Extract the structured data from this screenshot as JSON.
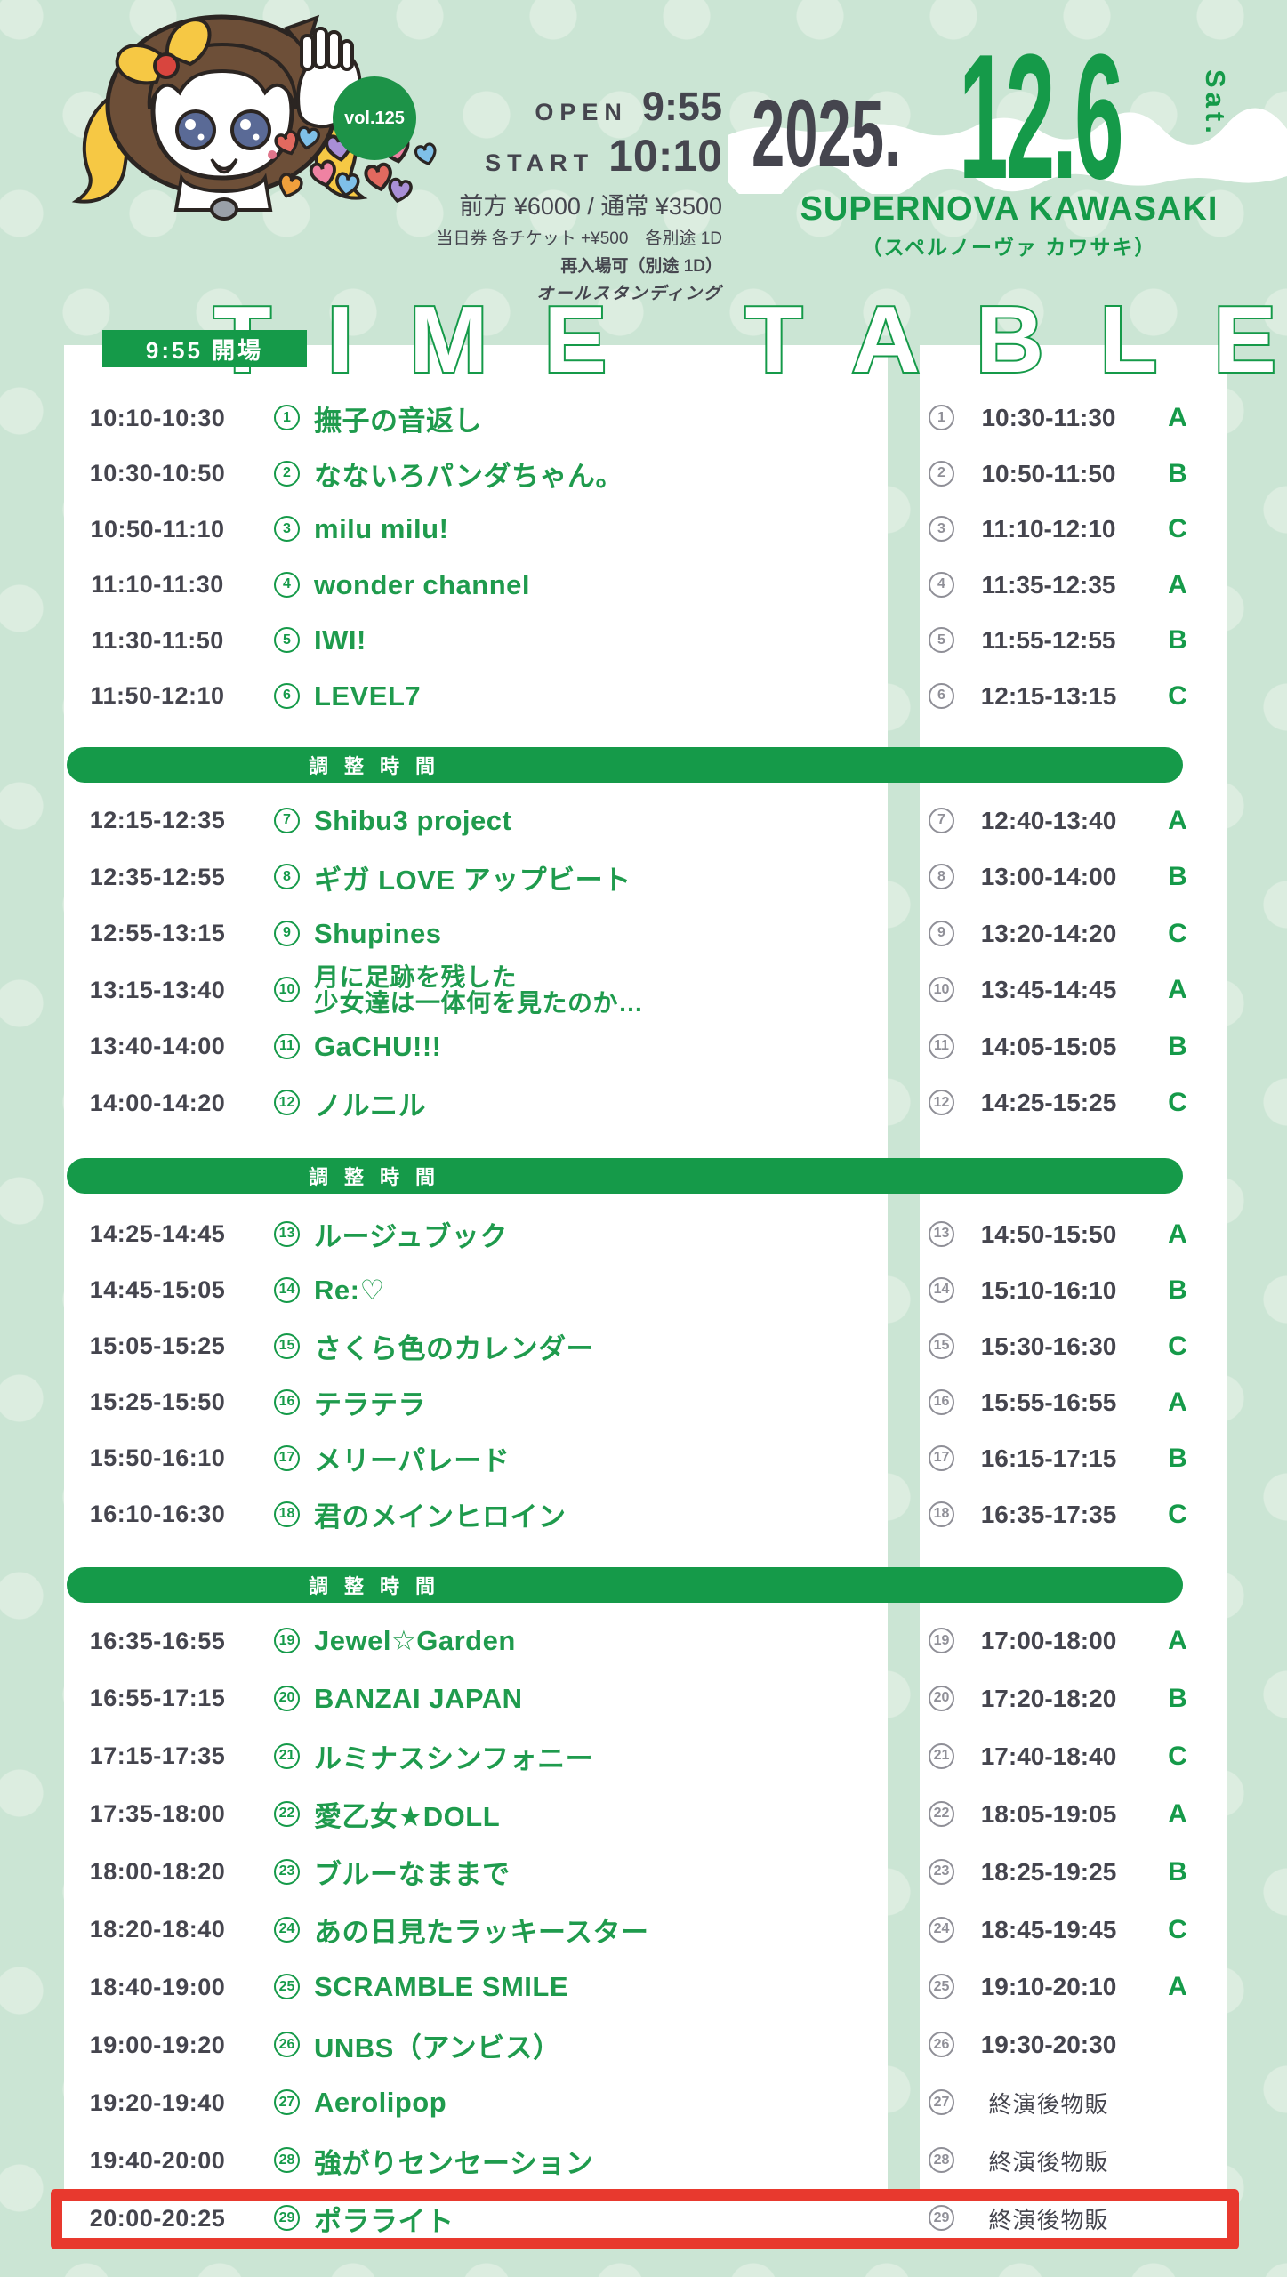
{
  "colors": {
    "accent_green": "#159a49",
    "text_dark": "#45454e",
    "highlight_red": "#e8392e",
    "background_mint": "#cbe5d4"
  },
  "badge": {
    "volume": "vol.125"
  },
  "header": {
    "open_label": "OPEN",
    "open_time": "9:55",
    "start_label": "START",
    "start_time": "10:10",
    "price_line": "前方 ¥6000 / 通常 ¥3500",
    "note1": "当日券 各チケット +¥500　各別途 1D",
    "note2": "再入場可（別途 1D）",
    "note3": "オールスタンディング"
  },
  "date": {
    "year": "2025.",
    "monthday": "12.6",
    "weekday": "Sat."
  },
  "venue": {
    "name": "SUPERNOVA KAWASAKI",
    "kana": "（スペルノーヴァ カワサキ）"
  },
  "title": {
    "text": "TIME TABLE"
  },
  "timetable": {
    "doors_badge": "9:55 開場",
    "adjustment_label": "調整時間",
    "rows": [
      {
        "num": "1",
        "time": "10:10-10:30",
        "act": "撫子の音返し",
        "sales_time": "10:30-11:30",
        "group": "A"
      },
      {
        "num": "2",
        "time": "10:30-10:50",
        "act": "なないろパンダちゃん。",
        "sales_time": "10:50-11:50",
        "group": "B"
      },
      {
        "num": "3",
        "time": "10:50-11:10",
        "act": "milu milu!",
        "sales_time": "11:10-12:10",
        "group": "C"
      },
      {
        "num": "4",
        "time": "11:10-11:30",
        "act": "wonder channel",
        "sales_time": "11:35-12:35",
        "group": "A"
      },
      {
        "num": "5",
        "time": "11:30-11:50",
        "act": "IWI!",
        "sales_time": "11:55-12:55",
        "group": "B"
      },
      {
        "num": "6",
        "time": "11:50-12:10",
        "act": "LEVEL7",
        "sales_time": "12:15-13:15",
        "group": "C"
      },
      {
        "num": "7",
        "time": "12:15-12:35",
        "act": "Shibu3 project",
        "sales_time": "12:40-13:40",
        "group": "A"
      },
      {
        "num": "8",
        "time": "12:35-12:55",
        "act": "ギガ LOVE アップビート",
        "sales_time": "13:00-14:00",
        "group": "B"
      },
      {
        "num": "9",
        "time": "12:55-13:15",
        "act": "Shupines",
        "sales_time": "13:20-14:20",
        "group": "C"
      },
      {
        "num": "10",
        "time": "13:15-13:40",
        "act": "月に足跡を残した\n少女達は一体何を見たのか…",
        "sales_time": "13:45-14:45",
        "group": "A"
      },
      {
        "num": "11",
        "time": "13:40-14:00",
        "act": "GaCHU!!!",
        "sales_time": "14:05-15:05",
        "group": "B"
      },
      {
        "num": "12",
        "time": "14:00-14:20",
        "act": "ノルニル",
        "sales_time": "14:25-15:25",
        "group": "C"
      },
      {
        "num": "13",
        "time": "14:25-14:45",
        "act": "ルージュブック",
        "sales_time": "14:50-15:50",
        "group": "A"
      },
      {
        "num": "14",
        "time": "14:45-15:05",
        "act": "Re:♡",
        "sales_time": "15:10-16:10",
        "group": "B"
      },
      {
        "num": "15",
        "time": "15:05-15:25",
        "act": "さくら色のカレンダー",
        "sales_time": "15:30-16:30",
        "group": "C"
      },
      {
        "num": "16",
        "time": "15:25-15:50",
        "act": "テラテラ",
        "sales_time": "15:55-16:55",
        "group": "A"
      },
      {
        "num": "17",
        "time": "15:50-16:10",
        "act": "メリーパレード",
        "sales_time": "16:15-17:15",
        "group": "B"
      },
      {
        "num": "18",
        "time": "16:10-16:30",
        "act": "君のメインヒロイン",
        "sales_time": "16:35-17:35",
        "group": "C"
      },
      {
        "num": "19",
        "time": "16:35-16:55",
        "act": "Jewel☆Garden",
        "sales_time": "17:00-18:00",
        "group": "A"
      },
      {
        "num": "20",
        "time": "16:55-17:15",
        "act": "BANZAI JAPAN",
        "sales_time": "17:20-18:20",
        "group": "B"
      },
      {
        "num": "21",
        "time": "17:15-17:35",
        "act": "ルミナスシンフォニー",
        "sales_time": "17:40-18:40",
        "group": "C"
      },
      {
        "num": "22",
        "time": "17:35-18:00",
        "act": "愛乙女★DOLL",
        "sales_time": "18:05-19:05",
        "group": "A"
      },
      {
        "num": "23",
        "time": "18:00-18:20",
        "act": "ブルーなままで",
        "sales_time": "18:25-19:25",
        "group": "B"
      },
      {
        "num": "24",
        "time": "18:20-18:40",
        "act": "あの日見たラッキースター",
        "sales_time": "18:45-19:45",
        "group": "C"
      },
      {
        "num": "25",
        "time": "18:40-19:00",
        "act": "SCRAMBLE SMILE",
        "sales_time": "19:10-20:10",
        "group": "A"
      },
      {
        "num": "26",
        "time": "19:00-19:20",
        "act": "UNBS（アンビス）",
        "sales_time": "19:30-20:30",
        "group": ""
      },
      {
        "num": "27",
        "time": "19:20-19:40",
        "act": "Aerolipop",
        "sales_time": "終演後物販",
        "group": ""
      },
      {
        "num": "28",
        "time": "19:40-20:00",
        "act": "強がりセンセーション",
        "sales_time": "終演後物販",
        "group": ""
      },
      {
        "num": "29",
        "time": "20:00-20:25",
        "act": "ポラライト",
        "sales_time": "終演後物販",
        "group": ""
      }
    ],
    "adjustment_after_rows": [
      6,
      12,
      18
    ],
    "highlighted_row": 29
  }
}
